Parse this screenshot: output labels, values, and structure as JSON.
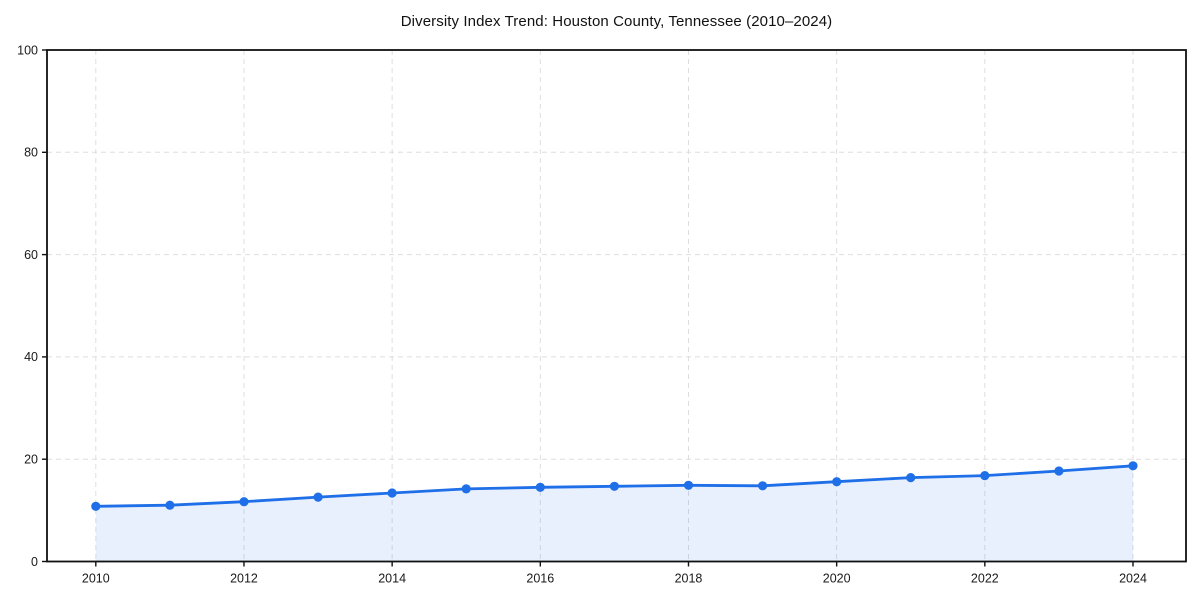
{
  "chart_data": {
    "type": "area",
    "title": "Diversity Index Trend: Houston County, Tennessee (2010–2024)",
    "x": [
      2010,
      2011,
      2012,
      2013,
      2014,
      2015,
      2016,
      2017,
      2018,
      2019,
      2020,
      2021,
      2022,
      2023,
      2024
    ],
    "values": [
      10.8,
      11.0,
      11.7,
      12.6,
      13.4,
      14.2,
      14.5,
      14.7,
      14.9,
      14.8,
      15.6,
      16.4,
      16.8,
      17.7,
      18.7
    ],
    "xlabel": "",
    "ylabel": "",
    "ylim": [
      0,
      100
    ],
    "yticks": [
      0,
      20,
      40,
      60,
      80,
      100
    ],
    "xticks": [
      2010,
      2012,
      2014,
      2016,
      2018,
      2020,
      2022,
      2024
    ],
    "grid": "dashed",
    "legend": "none",
    "colors": {
      "line": "#1f6fe8",
      "fill": "rgba(31,111,232,0.10)",
      "grid": "#dedede",
      "frame": "#111111",
      "tick_text": "#1a1a1a",
      "background": "#ffffff"
    }
  }
}
